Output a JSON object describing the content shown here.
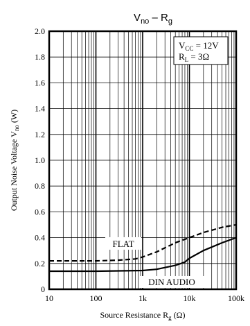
{
  "chart_data": {
    "type": "line",
    "title": "V",
    "title_sub1": "no",
    "title_dash": " – R",
    "title_sub2": "g",
    "xlabel": {
      "main": "Source Resistance R",
      "sub": "g",
      "unit": " (Ω)"
    },
    "ylabel": {
      "main": "Output Noise Voltage V",
      "sub": "no",
      "unit": " (W)"
    },
    "x_scale": "log",
    "xlim": [
      10,
      100000
    ],
    "ylim": [
      0,
      2.0
    ],
    "grid": true,
    "x_tick_labels": [
      "10",
      "100",
      "1k",
      "10k",
      "100k"
    ],
    "x_tick_values": [
      10,
      100,
      1000,
      10000,
      100000
    ],
    "y_tick_labels": [
      "0",
      "0.2",
      "0.4",
      "0.6",
      "0.8",
      "1.0",
      "1.2",
      "1.4",
      "1.6",
      "1.8",
      "2.0"
    ],
    "y_tick_values": [
      0,
      0.2,
      0.4,
      0.6,
      0.8,
      1.0,
      1.2,
      1.4,
      1.6,
      1.8,
      2.0
    ],
    "conditions": {
      "vcc_main": "V",
      "vcc_sub": "CC",
      "vcc_val": " = 12V",
      "rl_main": "R",
      "rl_sub": "L",
      "rl_val": " = 3Ω"
    },
    "series": [
      {
        "name": "FLAT",
        "line_style": "dashed",
        "x": [
          10,
          100,
          300,
          700,
          1000,
          2000,
          5000,
          10000,
          20000,
          50000,
          100000
        ],
        "y": [
          0.22,
          0.22,
          0.225,
          0.235,
          0.25,
          0.29,
          0.36,
          0.4,
          0.44,
          0.48,
          0.5
        ]
      },
      {
        "name": "DIN AUDIO",
        "line_style": "solid",
        "x": [
          10,
          100,
          1000,
          2000,
          5000,
          8000,
          10000,
          20000,
          50000,
          100000
        ],
        "y": [
          0.14,
          0.14,
          0.145,
          0.155,
          0.185,
          0.21,
          0.24,
          0.3,
          0.36,
          0.4
        ]
      }
    ]
  }
}
